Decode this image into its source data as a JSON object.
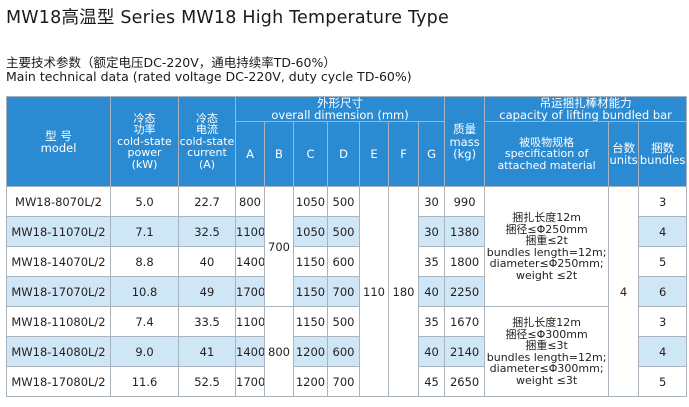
{
  "title": "MW18高温型  Series MW18  High Temperature Type",
  "subtitle_cn": "主要技术参数（额定电压DC-220V，通电持续率TD-60%）",
  "subtitle_en": "Main technical data (rated voltage DC-220V, duty cycle TD-60%)",
  "headers": {
    "model_cn": "型  号",
    "model_en": "model",
    "power_cn": "冷态\n功率",
    "power_en": "cold-state\npower\n(kW)",
    "current_cn": "冷态\n电流",
    "current_en": "cold-state\ncurrent\n(A)",
    "dim_cn": "外形尺寸",
    "dim_en": "overall dimension (mm)",
    "dim_cols": [
      "A",
      "B",
      "C",
      "D",
      "E",
      "F",
      "G"
    ],
    "mass_cn": "质量",
    "mass_en": "mass\n(kg)",
    "capacity_cn": "吊运捆扎棒材能力",
    "capacity_en": "capacity of lifting bundled bar",
    "spec_cn": "被吸物规格",
    "spec_en": "specification of\nattached material",
    "units_cn": "台数",
    "units_en": "units",
    "bundles_cn": "捆数",
    "bundles_en": "bundles"
  },
  "rows": [
    {
      "model": "MW18-8070L/2",
      "power": "5.0",
      "current": "22.7",
      "A": "800",
      "C": "1050",
      "D": "500",
      "G": "30",
      "mass": "990",
      "bundles": "3"
    },
    {
      "model": "MW18-11070L/2",
      "power": "7.1",
      "current": "32.5",
      "A": "1100",
      "C": "1050",
      "D": "500",
      "G": "30",
      "mass": "1380",
      "bundles": "4"
    },
    {
      "model": "MW18-14070L/2",
      "power": "8.8",
      "current": "40",
      "A": "1400",
      "C": "1150",
      "D": "600",
      "G": "35",
      "mass": "1800",
      "bundles": "5"
    },
    {
      "model": "MW18-17070L/2",
      "power": "10.8",
      "current": "49",
      "A": "1700",
      "C": "1150",
      "D": "700",
      "G": "40",
      "mass": "2250",
      "bundles": "6"
    },
    {
      "model": "MW18-11080L/2",
      "power": "7.4",
      "current": "33.5",
      "A": "1100",
      "C": "1150",
      "D": "500",
      "G": "35",
      "mass": "1670",
      "bundles": "3"
    },
    {
      "model": "MW18-14080L/2",
      "power": "9.0",
      "current": "41",
      "A": "1400",
      "C": "1200",
      "D": "600",
      "G": "40",
      "mass": "2140",
      "bundles": "4"
    },
    {
      "model": "MW18-17080L/2",
      "power": "11.6",
      "current": "52.5",
      "A": "1700",
      "C": "1200",
      "D": "700",
      "G": "45",
      "mass": "2650",
      "bundles": "5"
    }
  ],
  "merged": {
    "B_group1": "700",
    "B_group2": "800",
    "E": "110",
    "F": "180",
    "units": "4",
    "spec_group1": "捆扎长度12m\n捆径≤Φ250mm\n捆重≤2t\nbundles length=12m;\ndiameter≤Φ250mm;\nweight ≤2t",
    "spec_group2": "捆扎长度12m\n捆径≤Φ300mm\n捆重≤3t\nbundles length=12m;\ndiameter≤Φ300mm;\nweight ≤3t"
  },
  "colors": {
    "header_bg": "#2a8ad2",
    "row_shade": "#cfe6f6",
    "grid": "#a8b3bd"
  }
}
